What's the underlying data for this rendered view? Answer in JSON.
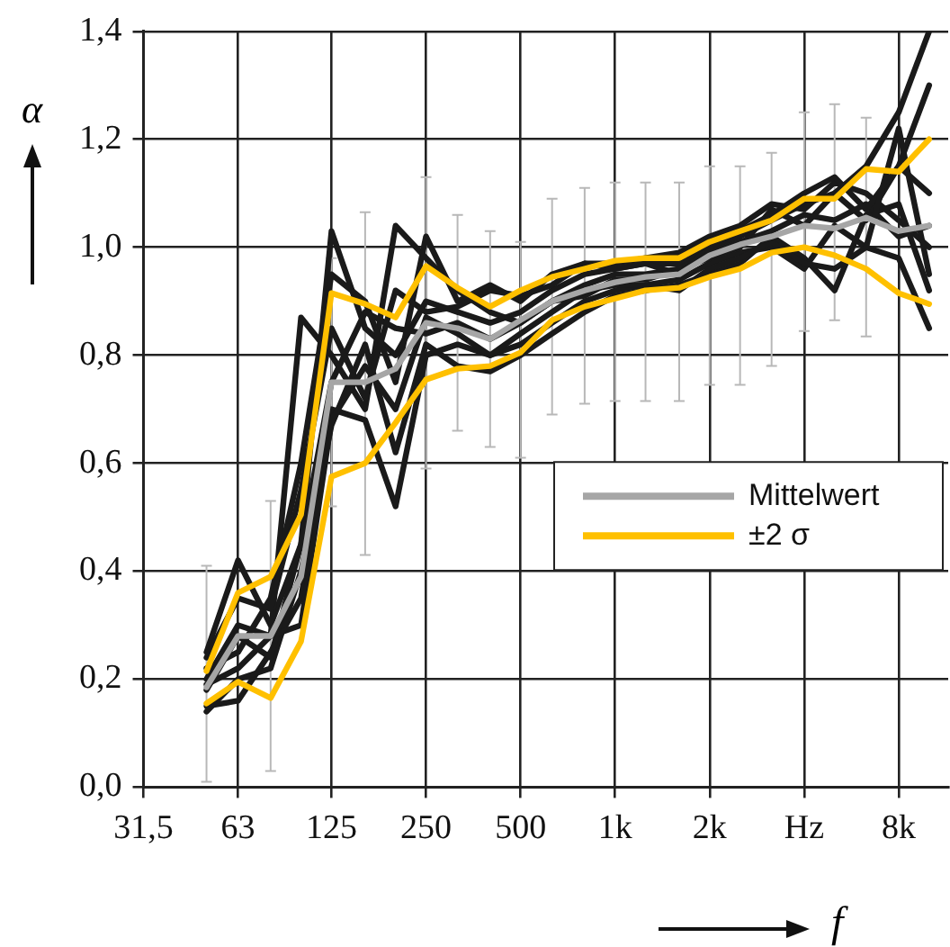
{
  "chart_data": {
    "type": "line",
    "xlabel": "f",
    "ylabel": "α",
    "log": "x",
    "grid": true,
    "legend": "right",
    "marker": "none",
    "line_style": "solid",
    "xlim": [
      31.5,
      11500
    ],
    "xticks": [
      {
        "value": 31.5,
        "label": "31,5"
      },
      63,
      125,
      250,
      500,
      {
        "value": 1000,
        "label": "1k"
      },
      {
        "value": 2000,
        "label": "2k"
      },
      {
        "value": 4000,
        "label": "Hz"
      },
      {
        "value": 8000,
        "label": "8k"
      }
    ],
    "ylim": [
      0,
      1.4
    ],
    "yticks": [
      {
        "value": 0,
        "label": "0,0"
      },
      {
        "value": 0.2,
        "label": "0,2"
      },
      {
        "value": 0.4,
        "label": "0,4"
      },
      {
        "value": 0.6,
        "label": "0,6"
      },
      {
        "value": 0.8,
        "label": "0,8"
      },
      {
        "value": 1,
        "label": "1,0"
      },
      {
        "value": 1.2,
        "label": "1,2"
      },
      {
        "value": 1.4,
        "label": "1,4"
      }
    ],
    "x": [
      50,
      63,
      80,
      100,
      125,
      160,
      200,
      250,
      315,
      400,
      500,
      630,
      800,
      1000,
      1250,
      1600,
      2000,
      2500,
      3150,
      4000,
      5000,
      6300,
      8000,
      10000
    ],
    "series": [
      {
        "color": "#1a1a1a",
        "values": [
          0.25,
          0.42,
          0.3,
          0.45,
          1.03,
          0.85,
          0.8,
          0.9,
          0.88,
          0.86,
          0.88,
          0.92,
          0.95,
          0.96,
          0.97,
          0.97,
          1.0,
          1.02,
          1.05,
          1.08,
          1.1,
          1.15,
          1.25,
          1.4
        ]
      },
      {
        "color": "#1a1a1a",
        "values": [
          0.15,
          0.16,
          0.25,
          0.35,
          0.7,
          0.68,
          0.52,
          0.8,
          0.82,
          0.8,
          0.82,
          0.86,
          0.9,
          0.92,
          0.93,
          0.94,
          0.97,
          0.99,
          1.0,
          0.96,
          1.04,
          1.0,
          0.98,
          0.85
        ]
      },
      {
        "color": "#1a1a1a",
        "values": [
          0.2,
          0.3,
          0.28,
          0.87,
          0.8,
          0.7,
          1.04,
          0.98,
          0.92,
          0.88,
          0.86,
          0.9,
          0.93,
          0.95,
          0.95,
          0.96,
          0.98,
          1.0,
          1.07,
          1.04,
          1.1,
          1.05,
          1.15,
          1.3
        ]
      },
      {
        "color": "#1a1a1a",
        "values": [
          0.22,
          0.25,
          0.35,
          0.6,
          0.95,
          0.9,
          0.75,
          1.02,
          0.9,
          0.93,
          0.9,
          0.95,
          0.97,
          0.97,
          0.98,
          0.99,
          1.02,
          1.04,
          1.08,
          1.07,
          1.12,
          1.1,
          1.05,
          1.0
        ]
      },
      {
        "color": "#1a1a1a",
        "values": [
          0.14,
          0.2,
          0.22,
          0.4,
          0.67,
          0.82,
          0.62,
          0.82,
          0.78,
          0.77,
          0.8,
          0.84,
          0.88,
          0.91,
          0.92,
          0.93,
          0.95,
          0.97,
          1.02,
          0.98,
          0.92,
          1.06,
          1.08,
          0.92
        ]
      },
      {
        "color": "#1a1a1a",
        "values": [
          0.18,
          0.28,
          0.24,
          0.45,
          0.75,
          0.88,
          0.85,
          0.84,
          0.86,
          0.83,
          0.86,
          0.9,
          0.91,
          0.94,
          0.94,
          0.96,
          0.99,
          1.01,
          1.03,
          1.06,
          1.05,
          1.08,
          1.02,
          1.04
        ]
      },
      {
        "color": "#1a1a1a",
        "values": [
          0.24,
          0.35,
          0.33,
          0.55,
          0.85,
          0.72,
          0.92,
          0.88,
          0.89,
          0.92,
          0.91,
          0.93,
          0.97,
          0.96,
          0.97,
          0.95,
          1.0,
          1.03,
          1.06,
          1.1,
          1.13,
          1.07,
          1.15,
          1.1
        ]
      },
      {
        "color": "#1a1a1a",
        "values": [
          0.19,
          0.22,
          0.28,
          0.3,
          0.68,
          0.78,
          0.7,
          0.87,
          0.84,
          0.8,
          0.84,
          0.88,
          0.92,
          0.93,
          0.93,
          0.92,
          0.96,
          0.98,
          1.01,
          0.97,
          0.96,
          1.0,
          1.22,
          0.95
        ]
      },
      {
        "color": "#ffc000",
        "values": [
          0.155,
          0.195,
          0.165,
          0.27,
          0.575,
          0.6,
          0.675,
          0.755,
          0.775,
          0.78,
          0.805,
          0.865,
          0.89,
          0.905,
          0.92,
          0.925,
          0.945,
          0.96,
          0.99,
          1.0,
          0.985,
          0.96,
          0.915,
          0.895
        ]
      },
      {
        "name": "±2 σ",
        "color": "#ffc000",
        "values": [
          0.215,
          0.36,
          0.39,
          0.505,
          0.915,
          0.895,
          0.87,
          0.965,
          0.925,
          0.89,
          0.92,
          0.945,
          0.96,
          0.975,
          0.98,
          0.98,
          1.01,
          1.03,
          1.05,
          1.09,
          1.09,
          1.145,
          1.14,
          1.2
        ]
      },
      {
        "name": "Mittelwert",
        "color": "#a6a6a6",
        "values": [
          0.185,
          0.28,
          0.28,
          0.39,
          0.75,
          0.75,
          0.775,
          0.86,
          0.85,
          0.83,
          0.865,
          0.9,
          0.92,
          0.935,
          0.945,
          0.95,
          0.985,
          1.005,
          1.02,
          1.04,
          1.035,
          1.055,
          1.03,
          1.04
        ],
        "errors": [
          [
            0.01,
            0.41
          ],
          null,
          [
            0.03,
            0.53
          ],
          null,
          [
            0.52,
            0.98
          ],
          [
            0.43,
            1.065
          ],
          null,
          [
            0.59,
            1.13
          ],
          [
            0.66,
            1.06
          ],
          [
            0.63,
            1.03
          ],
          [
            0.61,
            1.01
          ],
          [
            0.69,
            1.09
          ],
          [
            0.71,
            1.11
          ],
          [
            0.715,
            1.12
          ],
          [
            0.715,
            1.12
          ],
          [
            0.715,
            1.12
          ],
          [
            0.745,
            1.15
          ],
          [
            0.745,
            1.15
          ],
          [
            0.78,
            1.175
          ],
          [
            0.845,
            1.25
          ],
          [
            0.865,
            1.265
          ],
          [
            0.835,
            1.24
          ],
          null,
          null
        ]
      }
    ]
  }
}
